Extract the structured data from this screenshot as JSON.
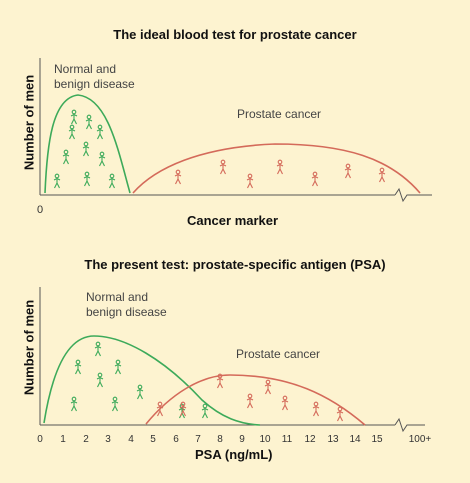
{
  "panel1": {
    "title": "The ideal blood test for prostate cancer",
    "ylabel": "Number of men",
    "xlabel": "Cancer marker",
    "zero": "0",
    "normal_label_line1": "Normal and",
    "normal_label_line2": "benign disease",
    "cancer_label": "Prostate cancer"
  },
  "panel2": {
    "title": "The present test: prostate-specific antigen (PSA)",
    "ylabel": "Number of men",
    "xlabel": "PSA (ng/mL)",
    "normal_label_line1": "Normal and",
    "normal_label_line2": "benign disease",
    "cancer_label": "Prostate cancer",
    "ticks": [
      "0",
      "1",
      "2",
      "3",
      "4",
      "5",
      "6",
      "7",
      "8",
      "9",
      "10",
      "11",
      "12",
      "13",
      "14",
      "15",
      "100+"
    ]
  },
  "colors": {
    "background": "#fdf3d0",
    "normal": "#3daa5a",
    "cancer": "#d46a5a",
    "axis": "#555555"
  },
  "icons": {
    "normal_figure": "person-figure-icon",
    "cancer_figure": "person-figure-icon",
    "axis_break": "axis-break-icon"
  }
}
